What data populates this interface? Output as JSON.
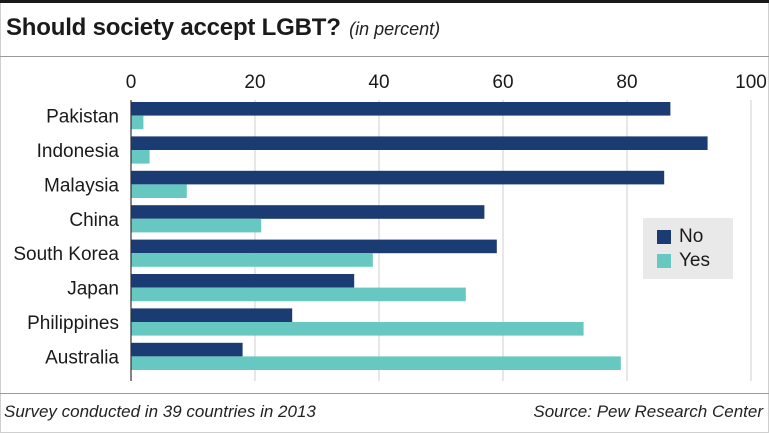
{
  "title": "Should society accept LGBT?",
  "subtitle": "(in percent)",
  "footer": {
    "left": "Survey conducted in 39 countries in 2013",
    "right": "Source: Pew Research Center"
  },
  "colors": {
    "no": "#1b3c73",
    "yes": "#66c8c0"
  },
  "chart_data": {
    "type": "bar",
    "orientation": "horizontal",
    "categories": [
      "Pakistan",
      "Indonesia",
      "Malaysia",
      "China",
      "South Korea",
      "Japan",
      "Philippines",
      "Australia"
    ],
    "series": [
      {
        "name": "No",
        "values": [
          87,
          93,
          86,
          57,
          59,
          36,
          26,
          18
        ]
      },
      {
        "name": "Yes",
        "values": [
          2,
          3,
          9,
          21,
          39,
          54,
          73,
          79
        ]
      }
    ],
    "xlim": [
      0,
      100
    ],
    "xticks": [
      "0",
      "20",
      "40",
      "60",
      "80",
      "100"
    ],
    "grid": true,
    "legend": "right"
  }
}
